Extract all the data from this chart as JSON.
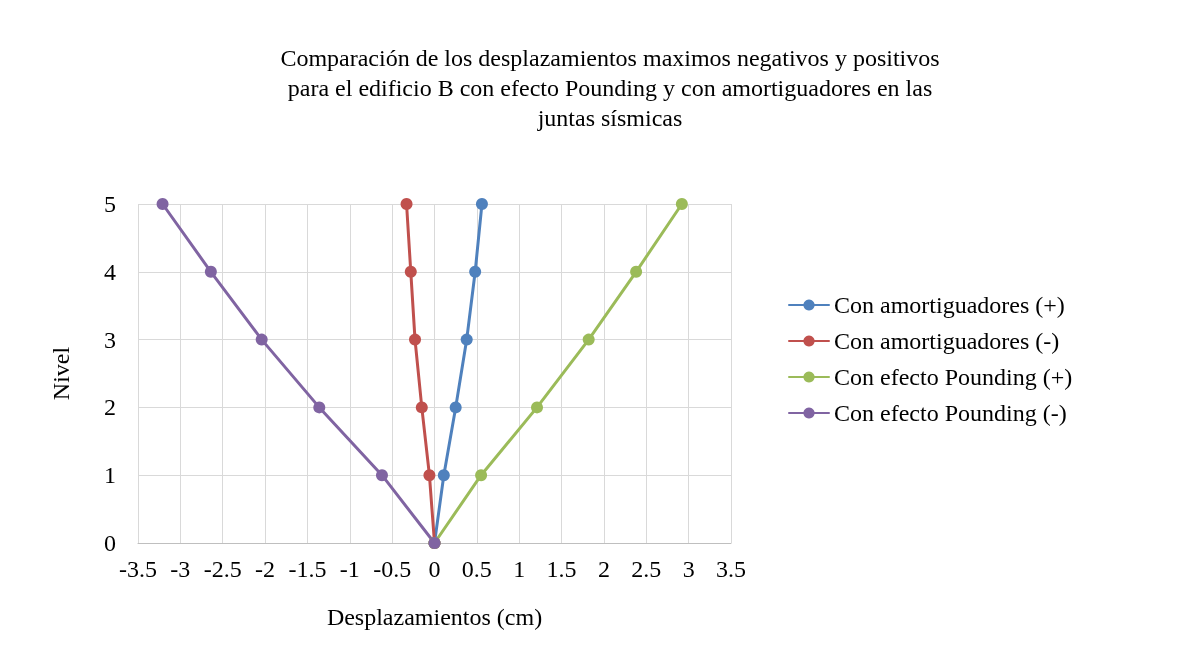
{
  "chart_data": {
    "type": "line",
    "title": "Comparación de los desplazamientos maximos negativos y positivos\npara el edificio B con efecto Pounding y con amortiguadores en las\njuntas sísmicas",
    "xlabel": "Desplazamientos (cm)",
    "ylabel": "Nivel",
    "series": [
      {
        "name": "Con amortiguadores (+)",
        "color": "#4f81bd",
        "x": [
          0,
          0.11,
          0.25,
          0.38,
          0.48,
          0.56
        ],
        "values": [
          0,
          1,
          2,
          3,
          4,
          5
        ]
      },
      {
        "name": "Con amortiguadores (-)",
        "color": "#c0504d",
        "x": [
          0,
          -0.06,
          -0.15,
          -0.23,
          -0.28,
          -0.33
        ],
        "values": [
          0,
          1,
          2,
          3,
          4,
          5
        ]
      },
      {
        "name": "Con efecto Pounding (+)",
        "color": "#9bbb59",
        "x": [
          0,
          0.55,
          1.21,
          1.82,
          2.38,
          2.92
        ],
        "values": [
          0,
          1,
          2,
          3,
          4,
          5
        ]
      },
      {
        "name": "Con efecto Pounding (-)",
        "color": "#8064a2",
        "x": [
          0,
          -0.62,
          -1.36,
          -2.04,
          -2.64,
          -3.21
        ],
        "values": [
          0,
          1,
          2,
          3,
          4,
          5
        ]
      }
    ],
    "xlim": [
      -3.5,
      3.5
    ],
    "xticks": [
      -3.5,
      -3,
      -2.5,
      -2,
      -1.5,
      -1,
      -0.5,
      0,
      0.5,
      1,
      1.5,
      2,
      2.5,
      3,
      3.5
    ],
    "ylim": [
      0,
      5
    ],
    "yticks": [
      0,
      1,
      2,
      3,
      4,
      5
    ],
    "grid": true,
    "legend": "right",
    "marker": "circle",
    "line_style": "solid"
  }
}
